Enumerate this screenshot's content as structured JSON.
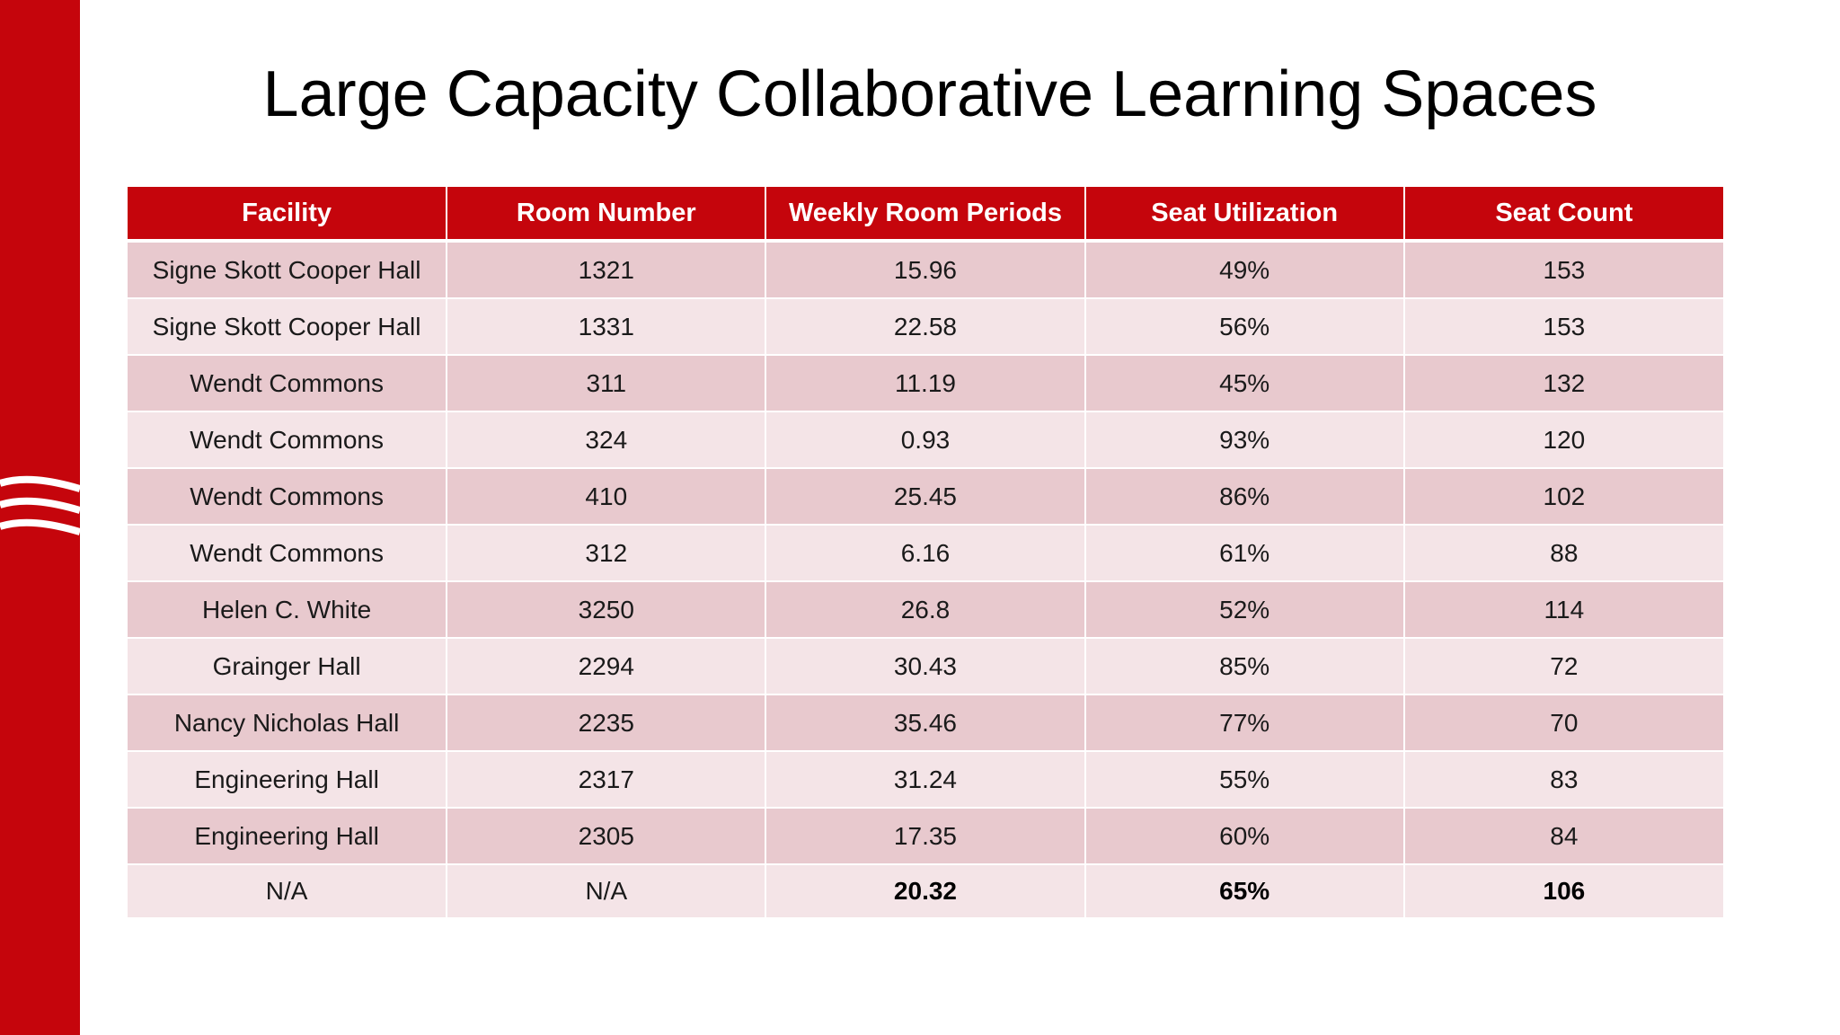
{
  "title": "Large Capacity Collaborative Learning Spaces",
  "colors": {
    "accent": "#c5050c",
    "row_dark": "#e8c9ce",
    "row_light": "#f4e4e7"
  },
  "table": {
    "headers": [
      "Facility",
      "Room Number",
      "Weekly Room Periods",
      "Seat Utilization",
      "Seat Count"
    ],
    "rows": [
      [
        "Signe Skott Cooper Hall",
        "1321",
        "15.96",
        "49%",
        "153"
      ],
      [
        "Signe Skott Cooper Hall",
        "1331",
        "22.58",
        "56%",
        "153"
      ],
      [
        "Wendt Commons",
        "311",
        "11.19",
        "45%",
        "132"
      ],
      [
        "Wendt Commons",
        "324",
        "0.93",
        "93%",
        "120"
      ],
      [
        "Wendt Commons",
        "410",
        "25.45",
        "86%",
        "102"
      ],
      [
        "Wendt Commons",
        "312",
        "6.16",
        "61%",
        "88"
      ],
      [
        "Helen C. White",
        "3250",
        "26.8",
        "52%",
        "114"
      ],
      [
        "Grainger Hall",
        "2294",
        "30.43",
        "85%",
        "72"
      ],
      [
        "Nancy Nicholas Hall",
        "2235",
        "35.46",
        "77%",
        "70"
      ],
      [
        "Engineering Hall",
        "2317",
        "31.24",
        "55%",
        "83"
      ],
      [
        "Engineering Hall",
        "2305",
        "17.35",
        "60%",
        "84"
      ]
    ],
    "total_row": [
      "N/A",
      "N/A",
      "20.32",
      "65%",
      "106"
    ]
  }
}
